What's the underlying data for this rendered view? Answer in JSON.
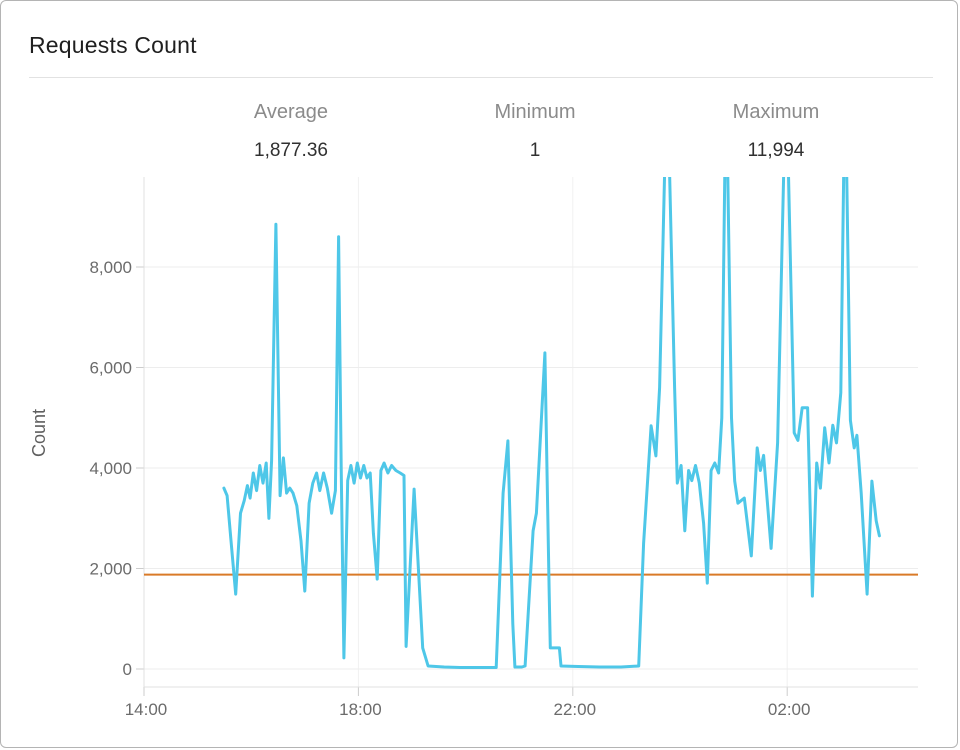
{
  "window": {
    "title": "Requests Count"
  },
  "stats": [
    {
      "label": "Average",
      "value": "1,877.36"
    },
    {
      "label": "Minimum",
      "value": "1"
    },
    {
      "label": "Maximum",
      "value": "11,994"
    }
  ],
  "chart_data": {
    "type": "line",
    "title": "Requests Count",
    "xlabel": "",
    "ylabel": "Count",
    "legend": false,
    "grid": true,
    "stats": {
      "average": 1877.36,
      "minimum": 1,
      "maximum": 11994
    },
    "average_reference_line": 1877.36,
    "line_color": "#4ec7e8",
    "average_line_color": "#d97a28",
    "x_unit": "hours since 14:00",
    "x_range_hours": [
      0,
      14.45
    ],
    "y_display_max": 9770,
    "y_ticks": [
      0,
      2000,
      4000,
      6000,
      8000
    ],
    "y_tick_labels": [
      "0",
      "2,000",
      "4,000",
      "6,000",
      "8,000"
    ],
    "x_ticks": [
      {
        "h": 0,
        "label": "14:00"
      },
      {
        "h": 4,
        "label": "18:00"
      },
      {
        "h": 8,
        "label": "22:00"
      },
      {
        "h": 12,
        "label": "02:00"
      }
    ],
    "note": "values above ~9,770 are clipped by the plot top; actual maximum 11,994",
    "series": [
      {
        "name": "Requests Count",
        "points": [
          [
            1.49,
            3600
          ],
          [
            1.55,
            3450
          ],
          [
            1.62,
            2600
          ],
          [
            1.71,
            1490
          ],
          [
            1.8,
            3100
          ],
          [
            1.87,
            3350
          ],
          [
            1.93,
            3650
          ],
          [
            1.98,
            3400
          ],
          [
            2.04,
            3900
          ],
          [
            2.1,
            3550
          ],
          [
            2.16,
            4050
          ],
          [
            2.22,
            3700
          ],
          [
            2.28,
            4100
          ],
          [
            2.33,
            3000
          ],
          [
            2.38,
            4150
          ],
          [
            2.46,
            8850
          ],
          [
            2.54,
            3450
          ],
          [
            2.6,
            4200
          ],
          [
            2.66,
            3500
          ],
          [
            2.72,
            3600
          ],
          [
            2.78,
            3500
          ],
          [
            2.85,
            3250
          ],
          [
            2.93,
            2550
          ],
          [
            3.0,
            1550
          ],
          [
            3.08,
            3300
          ],
          [
            3.15,
            3700
          ],
          [
            3.22,
            3900
          ],
          [
            3.28,
            3550
          ],
          [
            3.35,
            3900
          ],
          [
            3.42,
            3600
          ],
          [
            3.5,
            3100
          ],
          [
            3.57,
            3550
          ],
          [
            3.63,
            8600
          ],
          [
            3.68,
            4000
          ],
          [
            3.73,
            220
          ],
          [
            3.8,
            3750
          ],
          [
            3.86,
            4050
          ],
          [
            3.92,
            3700
          ],
          [
            3.98,
            4100
          ],
          [
            4.04,
            3800
          ],
          [
            4.1,
            4050
          ],
          [
            4.16,
            3800
          ],
          [
            4.22,
            3900
          ],
          [
            4.28,
            2700
          ],
          [
            4.35,
            1790
          ],
          [
            4.42,
            3950
          ],
          [
            4.48,
            4100
          ],
          [
            4.55,
            3900
          ],
          [
            4.62,
            4050
          ],
          [
            4.7,
            3950
          ],
          [
            4.78,
            3900
          ],
          [
            4.85,
            3850
          ],
          [
            4.89,
            450
          ],
          [
            5.04,
            3580
          ],
          [
            5.12,
            2000
          ],
          [
            5.2,
            420
          ],
          [
            5.3,
            60
          ],
          [
            5.6,
            40
          ],
          [
            5.9,
            30
          ],
          [
            6.2,
            30
          ],
          [
            6.45,
            30
          ],
          [
            6.57,
            30
          ],
          [
            6.7,
            3500
          ],
          [
            6.79,
            4540
          ],
          [
            6.88,
            900
          ],
          [
            6.92,
            40
          ],
          [
            7.05,
            40
          ],
          [
            7.11,
            60
          ],
          [
            7.26,
            2750
          ],
          [
            7.32,
            3100
          ],
          [
            7.48,
            6290
          ],
          [
            7.56,
            1500
          ],
          [
            7.58,
            420
          ],
          [
            7.75,
            420
          ],
          [
            7.78,
            60
          ],
          [
            8.1,
            50
          ],
          [
            8.5,
            40
          ],
          [
            8.9,
            40
          ],
          [
            9.23,
            60
          ],
          [
            9.32,
            2500
          ],
          [
            9.46,
            4840
          ],
          [
            9.55,
            4240
          ],
          [
            9.62,
            5600
          ],
          [
            9.76,
            11994
          ],
          [
            9.9,
            5600
          ],
          [
            9.95,
            3700
          ],
          [
            10.02,
            4050
          ],
          [
            10.09,
            2750
          ],
          [
            10.16,
            3950
          ],
          [
            10.22,
            3750
          ],
          [
            10.29,
            4050
          ],
          [
            10.36,
            3700
          ],
          [
            10.44,
            2900
          ],
          [
            10.51,
            1710
          ],
          [
            10.58,
            3950
          ],
          [
            10.65,
            4100
          ],
          [
            10.72,
            3900
          ],
          [
            10.78,
            5000
          ],
          [
            10.86,
            11994
          ],
          [
            10.96,
            5000
          ],
          [
            11.02,
            3740
          ],
          [
            11.08,
            3300
          ],
          [
            11.2,
            3400
          ],
          [
            11.33,
            2250
          ],
          [
            11.44,
            4400
          ],
          [
            11.5,
            3950
          ],
          [
            11.56,
            4250
          ],
          [
            11.7,
            2400
          ],
          [
            11.82,
            4500
          ],
          [
            11.98,
            11994
          ],
          [
            12.13,
            4700
          ],
          [
            12.2,
            4550
          ],
          [
            12.28,
            5200
          ],
          [
            12.38,
            5200
          ],
          [
            12.47,
            1450
          ],
          [
            12.55,
            4100
          ],
          [
            12.62,
            3600
          ],
          [
            12.7,
            4800
          ],
          [
            12.78,
            4100
          ],
          [
            12.85,
            4850
          ],
          [
            12.92,
            4500
          ],
          [
            13.0,
            5500
          ],
          [
            13.08,
            11994
          ],
          [
            13.18,
            4950
          ],
          [
            13.25,
            4400
          ],
          [
            13.3,
            4650
          ],
          [
            13.38,
            3500
          ],
          [
            13.49,
            1490
          ],
          [
            13.58,
            3740
          ],
          [
            13.66,
            2950
          ],
          [
            13.72,
            2650
          ]
        ]
      }
    ]
  },
  "colors": {
    "series_line": "#4ec7e8",
    "average_line": "#d97a28",
    "grid_line": "#ededed",
    "axis_line": "#e0e0e0",
    "tick_mark": "#cccccc",
    "tick_text": "#6b6b6b",
    "title_text": "#1f1f1f",
    "stat_label_text": "#8b8b8b",
    "stat_value_text": "#303030",
    "window_border": "#b4b4b4"
  }
}
